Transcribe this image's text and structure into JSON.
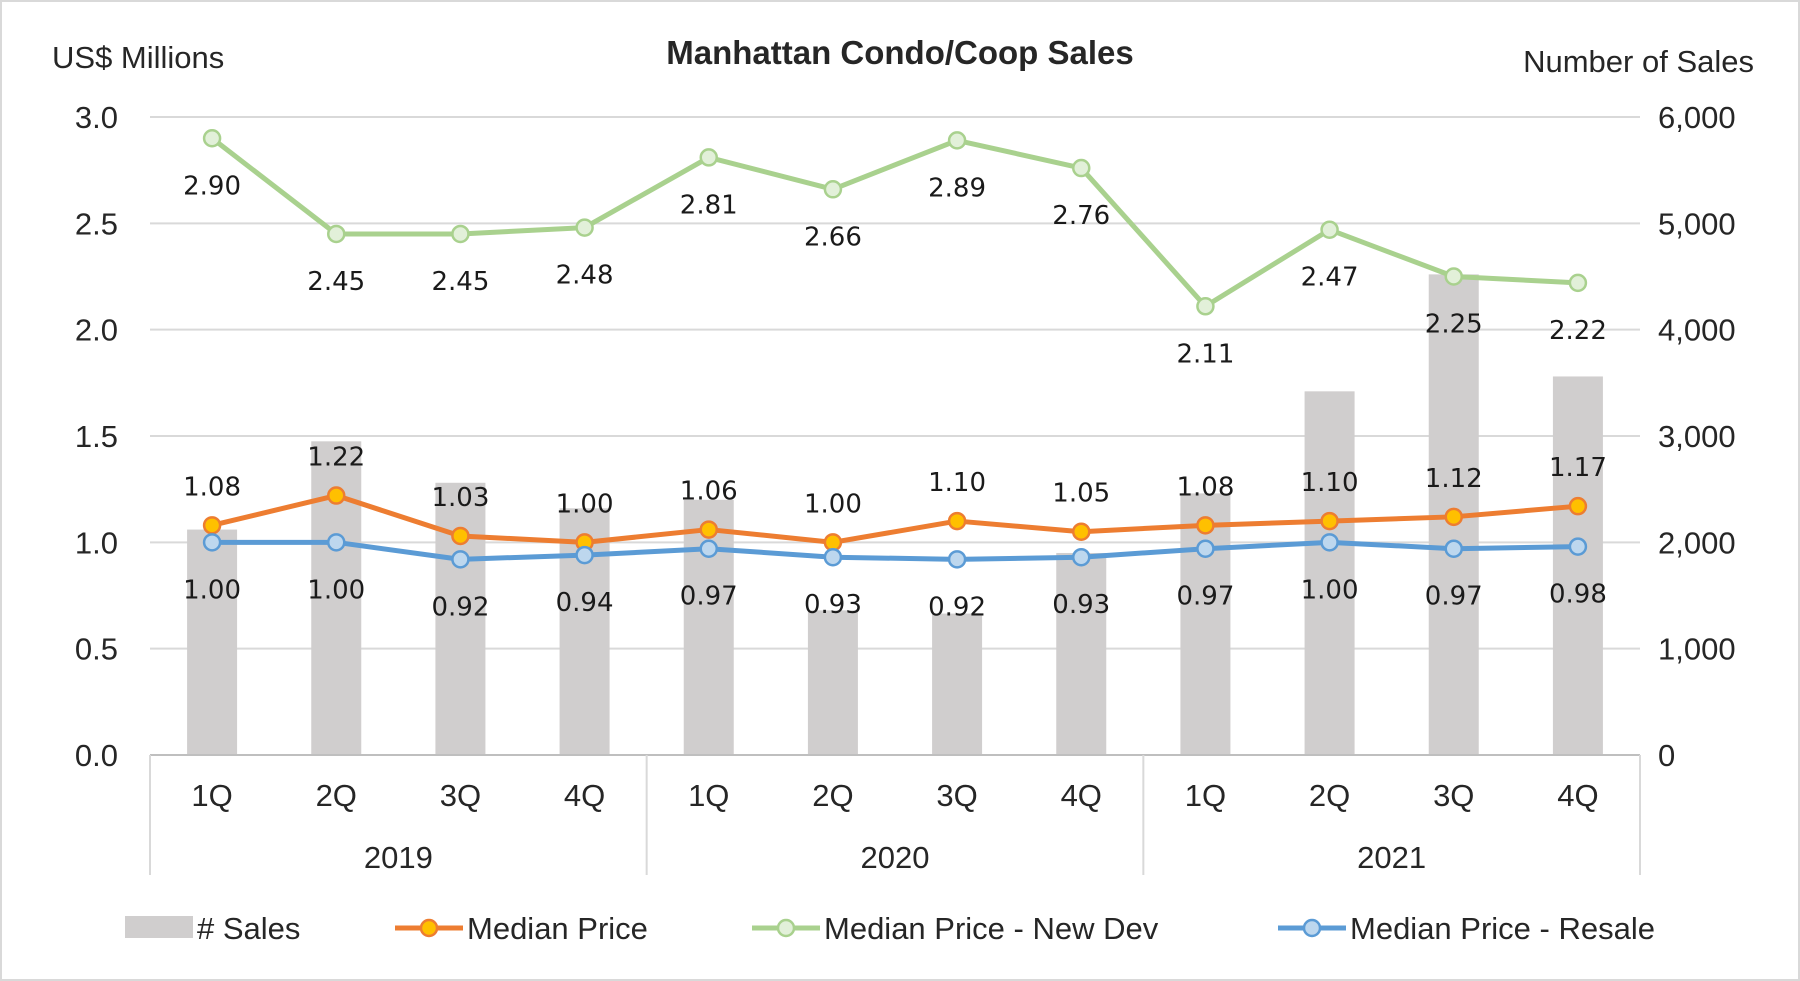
{
  "chart_data": {
    "type": "bar+line",
    "title": "Manhattan Condo/Coop Sales",
    "ylabel_left": "US$ Millions",
    "ylabel_right": "Number of Sales",
    "ylim_left": [
      0,
      3.0
    ],
    "ylim_right": [
      0,
      6000
    ],
    "yticks_left": [
      "0.0",
      "0.5",
      "1.0",
      "1.5",
      "2.0",
      "2.5",
      "3.0"
    ],
    "yticks_right": [
      "0",
      "1,000",
      "2,000",
      "3,000",
      "4,000",
      "5,000",
      "6,000"
    ],
    "categories": [
      "1Q",
      "2Q",
      "3Q",
      "4Q",
      "1Q",
      "2Q",
      "3Q",
      "4Q",
      "1Q",
      "2Q",
      "3Q",
      "4Q"
    ],
    "groups": [
      {
        "label": "2019",
        "span": 4
      },
      {
        "label": "2020",
        "span": 4
      },
      {
        "label": "2021",
        "span": 4
      }
    ],
    "grid": true,
    "legend_position": "bottom",
    "bars": {
      "name": "# Sales",
      "axis": "right",
      "color": "#d0cece",
      "values": [
        2120,
        2950,
        2560,
        2320,
        2400,
        1360,
        1330,
        1900,
        2460,
        3420,
        4520,
        3560
      ]
    },
    "series": [
      {
        "name": "Median Price",
        "axis": "left",
        "color": "#ed7d31",
        "marker_fill": "#ffc000",
        "values": [
          1.08,
          1.22,
          1.03,
          1.0,
          1.06,
          1.0,
          1.1,
          1.05,
          1.08,
          1.1,
          1.12,
          1.17
        ],
        "labels": [
          "1.08",
          "1.22",
          "1.03",
          "1.00",
          "1.06",
          "1.00",
          "1.10",
          "1.05",
          "1.08",
          "1.10",
          "1.12",
          "1.17"
        ],
        "label_position": "above"
      },
      {
        "name": "Median Price - New Dev",
        "axis": "left",
        "color": "#a9d18e",
        "marker_fill": "#e2f0d9",
        "values": [
          2.9,
          2.45,
          2.45,
          2.48,
          2.81,
          2.66,
          2.89,
          2.76,
          2.11,
          2.47,
          2.25,
          2.22
        ],
        "labels": [
          "2.90",
          "2.45",
          "2.45",
          "2.48",
          "2.81",
          "2.66",
          "2.89",
          "2.76",
          "2.11",
          "2.47",
          "2.25",
          "2.22"
        ],
        "label_position": "mixed"
      },
      {
        "name": "Median Price - Resale",
        "axis": "left",
        "color": "#5b9bd5",
        "marker_fill": "#bdd7ee",
        "values": [
          1.0,
          1.0,
          0.92,
          0.94,
          0.97,
          0.93,
          0.92,
          0.93,
          0.97,
          1.0,
          0.97,
          0.98
        ],
        "labels": [
          "1.00",
          "1.00",
          "0.92",
          "0.94",
          "0.97",
          "0.93",
          "0.92",
          "0.93",
          "0.97",
          "1.00",
          "0.97",
          "0.98"
        ],
        "label_position": "below"
      }
    ]
  }
}
